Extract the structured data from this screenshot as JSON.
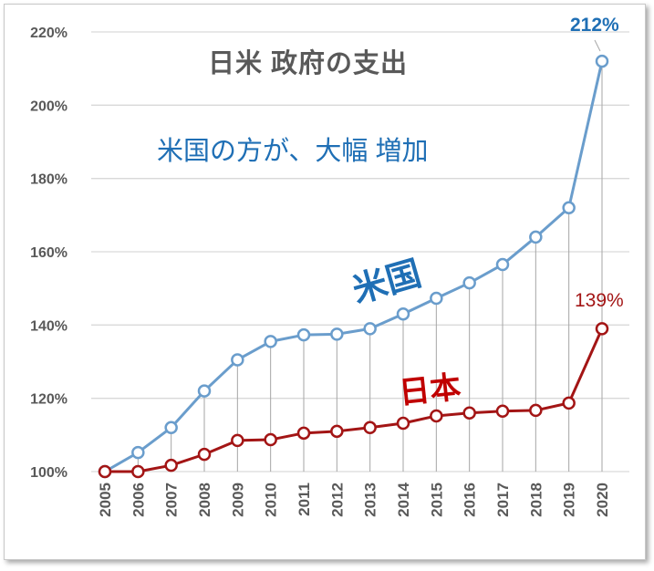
{
  "chart_data": {
    "type": "line",
    "title": "日米 政府の支出",
    "subtitle": "米国の方が、大幅 増加",
    "xlabel": "",
    "ylabel": "",
    "x": [
      "2005",
      "2006",
      "2007",
      "2008",
      "2009",
      "2010",
      "2011",
      "2012",
      "2013",
      "2014",
      "2015",
      "2016",
      "2017",
      "2018",
      "2019",
      "2020"
    ],
    "ylim": [
      100,
      220
    ],
    "yticks": [
      "100%",
      "120%",
      "140%",
      "160%",
      "180%",
      "200%",
      "220%"
    ],
    "ytick_values": [
      100,
      120,
      140,
      160,
      180,
      200,
      220
    ],
    "grid": true,
    "series": [
      {
        "name": "米国",
        "color": "#6a9dcc",
        "label_color": "#1f6fb5",
        "values": [
          100,
          105.2,
          112,
          122,
          130.5,
          135.5,
          137.3,
          137.5,
          139,
          143,
          147.3,
          151.5,
          156.5,
          164,
          172,
          212
        ],
        "end_label": "212%"
      },
      {
        "name": "日本",
        "color": "#a31515",
        "label_color": "#c00000",
        "values": [
          100,
          100,
          101.7,
          104.7,
          108.5,
          108.7,
          110.5,
          111,
          112,
          113.2,
          115.2,
          116,
          116.5,
          116.7,
          118.7,
          139
        ],
        "end_label": "139%"
      }
    ]
  }
}
